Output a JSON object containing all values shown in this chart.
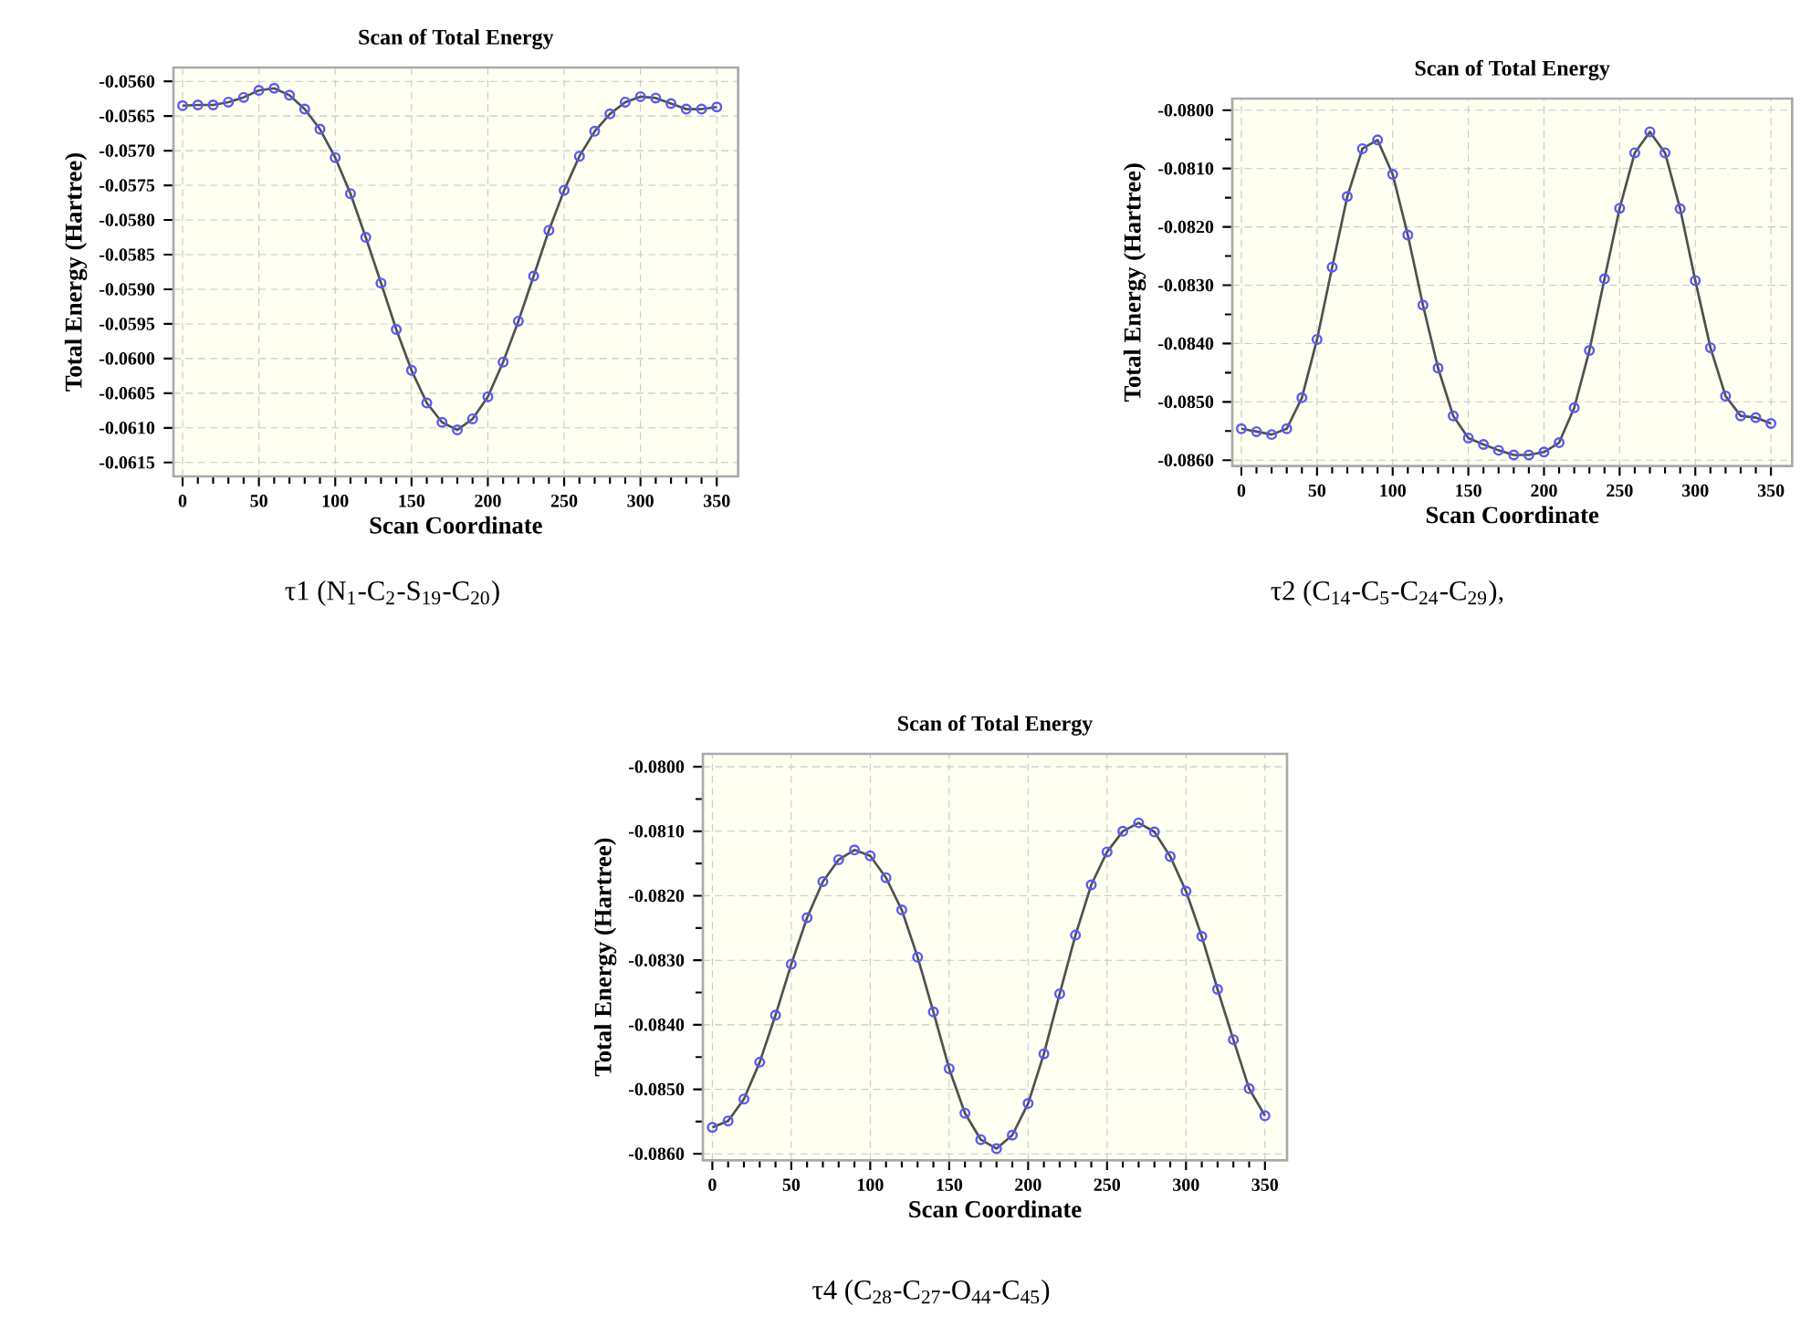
{
  "chart_data": [
    {
      "type": "line",
      "title": "Scan of Total Energy",
      "xlabel": "Scan Coordinate",
      "ylabel": "Total Energy (Hartree)",
      "marker": "circle",
      "grid": true,
      "color": "#5a5af0",
      "annotations": [
        "τ1 (N$_{1}$-C$_{2}$-S$_{19}$-C$_{20}$)"
      ],
      "x": [
        0,
        10,
        20,
        30,
        40,
        50,
        60,
        70,
        80,
        90,
        100,
        110,
        120,
        130,
        140,
        150,
        160,
        170,
        180,
        190,
        200,
        210,
        220,
        230,
        240,
        250,
        260,
        270,
        280,
        290,
        300,
        310,
        320,
        330,
        340,
        350
      ],
      "values": [
        -0.05635,
        -0.05634,
        -0.05634,
        -0.0563,
        -0.05623,
        -0.05613,
        -0.0561,
        -0.0562,
        -0.0564,
        -0.05669,
        -0.0571,
        -0.05762,
        -0.05825,
        -0.05891,
        -0.05958,
        -0.06017,
        -0.06064,
        -0.06092,
        -0.06103,
        -0.06087,
        -0.06055,
        -0.06005,
        -0.05946,
        -0.05881,
        -0.05815,
        -0.05757,
        -0.05708,
        -0.05672,
        -0.05647,
        -0.0563,
        -0.05622,
        -0.05624,
        -0.05632,
        -0.0564,
        -0.0564,
        -0.05637
      ],
      "xlim": [
        -6,
        364
      ],
      "ylim": [
        -0.0617,
        -0.0558
      ],
      "xticks": [
        0,
        {
          "value": 10,
          "label": null
        },
        {
          "value": 20,
          "label": null
        },
        {
          "value": 30,
          "label": null
        },
        {
          "value": 40,
          "label": null
        },
        50,
        {
          "value": 60,
          "label": null
        },
        {
          "value": 70,
          "label": null
        },
        {
          "value": 80,
          "label": null
        },
        {
          "value": 90,
          "label": null
        },
        100,
        {
          "value": 110,
          "label": null
        },
        {
          "value": 120,
          "label": null
        },
        {
          "value": 130,
          "label": null
        },
        {
          "value": 140,
          "label": null
        },
        150,
        {
          "value": 160,
          "label": null
        },
        {
          "value": 170,
          "label": null
        },
        {
          "value": 180,
          "label": null
        },
        {
          "value": 190,
          "label": null
        },
        200,
        {
          "value": 210,
          "label": null
        },
        {
          "value": 220,
          "label": null
        },
        {
          "value": 230,
          "label": null
        },
        {
          "value": 240,
          "label": null
        },
        250,
        {
          "value": 260,
          "label": null
        },
        {
          "value": 270,
          "label": null
        },
        {
          "value": 280,
          "label": null
        },
        {
          "value": 290,
          "label": null
        },
        300,
        {
          "value": 310,
          "label": null
        },
        {
          "value": 320,
          "label": null
        },
        {
          "value": 330,
          "label": null
        },
        {
          "value": 340,
          "label": null
        },
        350
      ],
      "yticks": [
        {
          "value": -0.056,
          "label": "-0.0560"
        },
        {
          "value": -0.0565,
          "label": "-0.0565"
        },
        {
          "value": -0.057,
          "label": "-0.0570"
        },
        {
          "value": -0.0575,
          "label": "-0.0575"
        },
        {
          "value": -0.058,
          "label": "-0.0580"
        },
        {
          "value": -0.0585,
          "label": "-0.0585"
        },
        {
          "value": -0.059,
          "label": "-0.0590"
        },
        {
          "value": -0.0595,
          "label": "-0.0595"
        },
        {
          "value": -0.06,
          "label": "-0.0600"
        },
        {
          "value": -0.0605,
          "label": "-0.0605"
        },
        {
          "value": -0.061,
          "label": "-0.0610"
        },
        {
          "value": -0.0615,
          "label": "-0.0615"
        }
      ]
    },
    {
      "type": "line",
      "title": "Scan of Total Energy",
      "xlabel": "Scan Coordinate",
      "ylabel": "Total Energy (Hartree)",
      "marker": "circle",
      "grid": true,
      "color": "#5a5af0",
      "annotations": [
        "τ2 (C$_{14}$-C$_{5}$-C$_{24}$-C$_{29}$),"
      ],
      "x": [
        0,
        10,
        20,
        30,
        40,
        50,
        60,
        70,
        80,
        90,
        100,
        110,
        120,
        130,
        140,
        150,
        160,
        170,
        180,
        190,
        200,
        210,
        220,
        230,
        240,
        250,
        260,
        270,
        280,
        290,
        300,
        310,
        320,
        330,
        340,
        350
      ],
      "values": [
        -0.08546,
        -0.08551,
        -0.08556,
        -0.08546,
        -0.08493,
        -0.08393,
        -0.08269,
        -0.08148,
        -0.08066,
        -0.08051,
        -0.0811,
        -0.08214,
        -0.08334,
        -0.08442,
        -0.08524,
        -0.08562,
        -0.08573,
        -0.08583,
        -0.08591,
        -0.08591,
        -0.08586,
        -0.0857,
        -0.0851,
        -0.08412,
        -0.08289,
        -0.08168,
        -0.08073,
        -0.08037,
        -0.08073,
        -0.08169,
        -0.08292,
        -0.08407,
        -0.0849,
        -0.08524,
        -0.08527,
        -0.08537
      ],
      "xlim": [
        -6,
        364
      ],
      "ylim": [
        -0.0861,
        -0.0798
      ],
      "xticks": [
        0,
        {
          "value": 10,
          "label": null
        },
        {
          "value": 20,
          "label": null
        },
        {
          "value": 30,
          "label": null
        },
        {
          "value": 40,
          "label": null
        },
        50,
        {
          "value": 60,
          "label": null
        },
        {
          "value": 70,
          "label": null
        },
        {
          "value": 80,
          "label": null
        },
        {
          "value": 90,
          "label": null
        },
        100,
        {
          "value": 110,
          "label": null
        },
        {
          "value": 120,
          "label": null
        },
        {
          "value": 130,
          "label": null
        },
        {
          "value": 140,
          "label": null
        },
        150,
        {
          "value": 160,
          "label": null
        },
        {
          "value": 170,
          "label": null
        },
        {
          "value": 180,
          "label": null
        },
        {
          "value": 190,
          "label": null
        },
        200,
        {
          "value": 210,
          "label": null
        },
        {
          "value": 220,
          "label": null
        },
        {
          "value": 230,
          "label": null
        },
        {
          "value": 240,
          "label": null
        },
        250,
        {
          "value": 260,
          "label": null
        },
        {
          "value": 270,
          "label": null
        },
        {
          "value": 280,
          "label": null
        },
        {
          "value": 290,
          "label": null
        },
        300,
        {
          "value": 310,
          "label": null
        },
        {
          "value": 320,
          "label": null
        },
        {
          "value": 330,
          "label": null
        },
        {
          "value": 340,
          "label": null
        },
        350
      ],
      "yticks": [
        {
          "value": -0.08,
          "label": "-0.0800"
        },
        {
          "value": -0.0805,
          "label": null
        },
        {
          "value": -0.081,
          "label": "-0.0810"
        },
        {
          "value": -0.0815,
          "label": null
        },
        {
          "value": -0.082,
          "label": "-0.0820"
        },
        {
          "value": -0.0825,
          "label": null
        },
        {
          "value": -0.083,
          "label": "-0.0830"
        },
        {
          "value": -0.0835,
          "label": null
        },
        {
          "value": -0.084,
          "label": "-0.0840"
        },
        {
          "value": -0.0845,
          "label": null
        },
        {
          "value": -0.085,
          "label": "-0.0850"
        },
        {
          "value": -0.0855,
          "label": null
        },
        {
          "value": -0.086,
          "label": "-0.0860"
        }
      ]
    },
    {
      "type": "line",
      "title": "Scan of Total Energy",
      "xlabel": "Scan Coordinate",
      "ylabel": "Total Energy (Hartree)",
      "marker": "circle",
      "grid": true,
      "color": "#5a5af0",
      "annotations": [
        "τ4 (C$_{28}$-C$_{27}$-O$_{44}$-C$_{45}$)"
      ],
      "x": [
        0,
        10,
        20,
        30,
        40,
        50,
        60,
        70,
        80,
        90,
        100,
        110,
        120,
        130,
        140,
        150,
        160,
        170,
        180,
        190,
        200,
        210,
        220,
        230,
        240,
        250,
        260,
        270,
        280,
        290,
        300,
        310,
        320,
        330,
        340,
        350
      ],
      "values": [
        -0.08559,
        -0.08549,
        -0.08515,
        -0.08458,
        -0.08385,
        -0.08306,
        -0.08234,
        -0.08178,
        -0.08144,
        -0.08129,
        -0.08138,
        -0.08172,
        -0.08222,
        -0.08295,
        -0.0838,
        -0.08468,
        -0.08537,
        -0.08578,
        -0.08592,
        -0.08571,
        -0.08522,
        -0.08445,
        -0.08352,
        -0.08261,
        -0.08183,
        -0.08132,
        -0.081,
        -0.08087,
        -0.08101,
        -0.08139,
        -0.08193,
        -0.08263,
        -0.08345,
        -0.08423,
        -0.08499,
        -0.08541
      ],
      "xlim": [
        -6,
        364
      ],
      "ylim": [
        -0.0861,
        -0.0798
      ],
      "xticks": [
        0,
        {
          "value": 10,
          "label": null
        },
        {
          "value": 20,
          "label": null
        },
        {
          "value": 30,
          "label": null
        },
        {
          "value": 40,
          "label": null
        },
        50,
        {
          "value": 60,
          "label": null
        },
        {
          "value": 70,
          "label": null
        },
        {
          "value": 80,
          "label": null
        },
        {
          "value": 90,
          "label": null
        },
        100,
        {
          "value": 110,
          "label": null
        },
        {
          "value": 120,
          "label": null
        },
        {
          "value": 130,
          "label": null
        },
        {
          "value": 140,
          "label": null
        },
        150,
        {
          "value": 160,
          "label": null
        },
        {
          "value": 170,
          "label": null
        },
        {
          "value": 180,
          "label": null
        },
        {
          "value": 190,
          "label": null
        },
        200,
        {
          "value": 210,
          "label": null
        },
        {
          "value": 220,
          "label": null
        },
        {
          "value": 230,
          "label": null
        },
        {
          "value": 240,
          "label": null
        },
        250,
        {
          "value": 260,
          "label": null
        },
        {
          "value": 270,
          "label": null
        },
        {
          "value": 280,
          "label": null
        },
        {
          "value": 290,
          "label": null
        },
        300,
        {
          "value": 310,
          "label": null
        },
        {
          "value": 320,
          "label": null
        },
        {
          "value": 330,
          "label": null
        },
        {
          "value": 340,
          "label": null
        },
        350
      ],
      "yticks": [
        {
          "value": -0.08,
          "label": "-0.0800"
        },
        {
          "value": -0.0805,
          "label": null
        },
        {
          "value": -0.081,
          "label": "-0.0810"
        },
        {
          "value": -0.0815,
          "label": null
        },
        {
          "value": -0.082,
          "label": "-0.0820"
        },
        {
          "value": -0.0825,
          "label": null
        },
        {
          "value": -0.083,
          "label": "-0.0830"
        },
        {
          "value": -0.0835,
          "label": null
        },
        {
          "value": -0.084,
          "label": "-0.0840"
        },
        {
          "value": -0.0845,
          "label": null
        },
        {
          "value": -0.085,
          "label": "-0.0850"
        },
        {
          "value": -0.0855,
          "label": null
        },
        {
          "value": -0.086,
          "label": "-0.0860"
        }
      ]
    }
  ]
}
